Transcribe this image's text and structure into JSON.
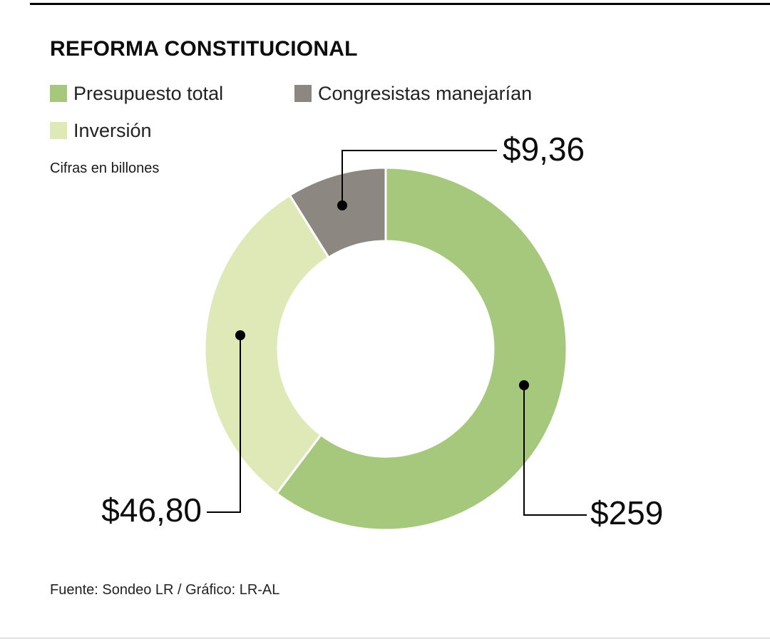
{
  "page": {
    "title": "REFORMA CONSTITUCIONAL",
    "note": "Cifras en billones",
    "source": "Fuente: Sondeo LR / Gráfico: LR-AL"
  },
  "legend": {
    "items": [
      {
        "label": "Presupuesto total",
        "color": "#a6c87c"
      },
      {
        "label": "Congresistas manejarían",
        "color": "#8d8781"
      },
      {
        "label": "Inversión",
        "color": "#dfe8b7"
      }
    ]
  },
  "chart_data": {
    "type": "pie",
    "subtype": "donut",
    "title": "REFORMA CONSTITUCIONAL",
    "unit_note": "Cifras en billones",
    "legend_position": "top-left",
    "segments": [
      {
        "name": "Presupuesto total",
        "label": "$259",
        "value": 259,
        "color": "#a6c87c",
        "start_angle": 0,
        "end_angle": 217
      },
      {
        "name": "Inversión",
        "label": "$46,80",
        "value": 46.8,
        "color": "#dfe8b7",
        "start_angle": 217,
        "end_angle": 328
      },
      {
        "name": "Congresistas manejarían",
        "label": "$9,36",
        "value": 9.36,
        "color": "#8d8781",
        "start_angle": 328,
        "end_angle": 360
      }
    ],
    "center": [
      541,
      489
    ],
    "outer_radius": 254,
    "inner_radius": 151,
    "source": "Fuente: Sondeo LR / Gráfico: LR-AL"
  }
}
